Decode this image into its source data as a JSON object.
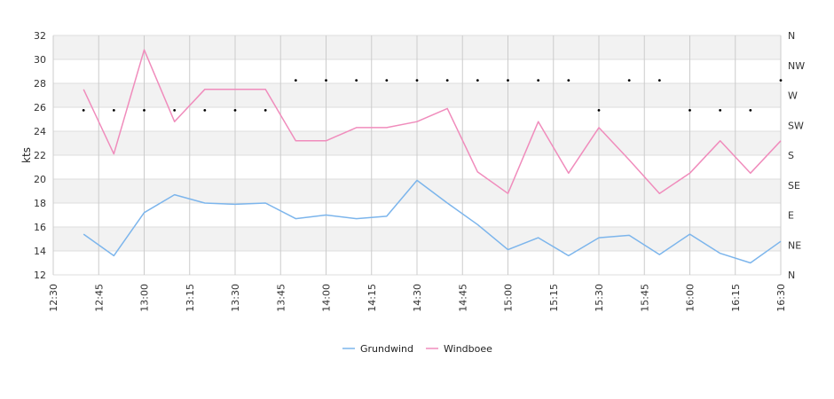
{
  "chart_data": {
    "type": "line",
    "ylabel": "kts",
    "ylim": [
      12,
      32
    ],
    "yticks": [
      12,
      14,
      16,
      18,
      20,
      22,
      24,
      26,
      28,
      30,
      32
    ],
    "xlim": [
      "12:30",
      "16:30"
    ],
    "xticks": [
      "12:30",
      "12:45",
      "13:00",
      "13:15",
      "13:30",
      "13:45",
      "14:00",
      "14:15",
      "14:30",
      "14:45",
      "15:00",
      "15:15",
      "15:30",
      "15:45",
      "16:00",
      "16:15",
      "16:30"
    ],
    "y2_labels": [
      "N",
      "NE",
      "E",
      "SE",
      "S",
      "SW",
      "W",
      "NW",
      "N"
    ],
    "grid": true,
    "legend": "bottom-center",
    "x": [
      "12:40",
      "12:50",
      "13:00",
      "13:10",
      "13:20",
      "13:30",
      "13:40",
      "13:50",
      "14:00",
      "14:10",
      "14:20",
      "14:30",
      "14:40",
      "14:50",
      "15:00",
      "15:10",
      "15:20",
      "15:30",
      "15:40",
      "15:50",
      "16:00",
      "16:10",
      "16:20",
      "16:30"
    ],
    "series": [
      {
        "name": "Grundwind",
        "color": "#7cb5ec",
        "values": [
          15.4,
          13.6,
          17.2,
          18.7,
          18.0,
          17.9,
          18.0,
          16.7,
          17.0,
          16.7,
          16.9,
          19.9,
          18.0,
          16.2,
          14.1,
          15.1,
          13.6,
          15.1,
          15.3,
          13.7,
          15.4,
          13.8,
          13.0,
          14.8
        ]
      },
      {
        "name": "Windboee",
        "color": "#f08cbc",
        "values": [
          27.5,
          22.1,
          30.8,
          24.8,
          27.5,
          27.5,
          27.5,
          23.2,
          23.2,
          24.3,
          24.3,
          24.8,
          25.9,
          20.6,
          18.8,
          24.8,
          20.5,
          24.3,
          21.6,
          18.8,
          20.5,
          23.2,
          20.5,
          23.2
        ]
      }
    ],
    "direction_series": {
      "color": "#000000",
      "unit": "compass",
      "values": [
        "SW",
        "SW",
        "SW",
        "SW",
        "SW",
        "SW",
        "SW",
        "W",
        "W",
        "W",
        "W",
        "W",
        "W",
        "W",
        "W",
        "W",
        "W",
        "SW",
        "W",
        "W",
        "SW",
        "SW",
        "SW",
        "W"
      ]
    }
  }
}
